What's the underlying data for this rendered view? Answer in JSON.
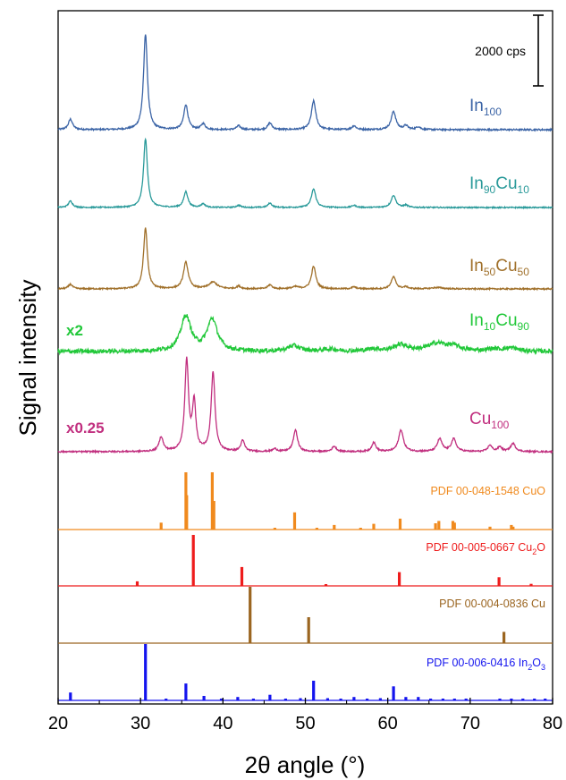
{
  "chart_data": {
    "type": "line",
    "xlabel": "2θ angle (°)",
    "ylabel": "Signal intensity",
    "xlim": [
      20,
      80
    ],
    "xticks": [
      "20",
      "30",
      "40",
      "50",
      "60",
      "70",
      "80"
    ],
    "scale_bar": {
      "label": "2000 cps"
    },
    "series": [
      {
        "key": "in100",
        "name_main": "In",
        "name_sub": "100",
        "name2_main": "",
        "name2_sub": "",
        "color": "#3b64a6",
        "multiplier": "",
        "baseline": 0,
        "noise": 0.8,
        "peaks": [
          [
            21.5,
            11,
            0.3
          ],
          [
            30.6,
            100,
            0.28
          ],
          [
            35.5,
            26,
            0.3
          ],
          [
            37.6,
            6,
            0.3
          ],
          [
            41.9,
            4,
            0.3
          ],
          [
            45.7,
            7,
            0.3
          ],
          [
            51.0,
            30,
            0.32
          ],
          [
            55.9,
            4,
            0.3
          ],
          [
            60.7,
            19,
            0.34
          ],
          [
            62.2,
            4,
            0.3
          ],
          [
            63.7,
            3,
            0.3
          ]
        ]
      },
      {
        "key": "in90cu10",
        "name_main": "In",
        "name_sub": "90",
        "name2_main": "Cu",
        "name2_sub": "10",
        "color": "#2a9a9a",
        "multiplier": "",
        "baseline": 0,
        "noise": 0.8,
        "peaks": [
          [
            21.5,
            9,
            0.3
          ],
          [
            30.6,
            96,
            0.28
          ],
          [
            35.5,
            22,
            0.3
          ],
          [
            37.6,
            5,
            0.3
          ],
          [
            41.9,
            3,
            0.3
          ],
          [
            45.7,
            6,
            0.3
          ],
          [
            51.0,
            26,
            0.32
          ],
          [
            55.9,
            3,
            0.3
          ],
          [
            60.7,
            17,
            0.34
          ],
          [
            62.2,
            3,
            0.3
          ]
        ]
      },
      {
        "key": "in50cu50",
        "name_main": "In",
        "name_sub": "50",
        "name2_main": "Cu",
        "name2_sub": "50",
        "color": "#a0702a",
        "multiplier": "",
        "baseline": 0,
        "noise": 1.0,
        "peaks": [
          [
            21.5,
            7,
            0.3
          ],
          [
            30.6,
            92,
            0.28
          ],
          [
            35.5,
            40,
            0.35
          ],
          [
            38.8,
            10,
            0.6
          ],
          [
            41.9,
            4,
            0.3
          ],
          [
            45.7,
            6,
            0.3
          ],
          [
            48.8,
            3,
            0.5
          ],
          [
            51.0,
            34,
            0.32
          ],
          [
            55.9,
            3,
            0.3
          ],
          [
            60.7,
            18,
            0.34
          ],
          [
            62.2,
            3,
            0.3
          ],
          [
            66.0,
            2,
            0.8
          ]
        ]
      },
      {
        "key": "in10cu90",
        "name_main": "In",
        "name_sub": "10",
        "name2_main": "Cu",
        "name2_sub": "90",
        "color": "#22c83a",
        "multiplier": "x2",
        "baseline": 0,
        "noise": 2.0,
        "peaks": [
          [
            35.5,
            32,
            0.75
          ],
          [
            38.7,
            29,
            0.75
          ],
          [
            48.6,
            5,
            0.9
          ],
          [
            53.0,
            2,
            1.0
          ],
          [
            58.3,
            2,
            1.0
          ],
          [
            61.6,
            6,
            1.0
          ],
          [
            66.0,
            7,
            1.4
          ],
          [
            68.0,
            4,
            1.0
          ],
          [
            72.8,
            2,
            1.0
          ],
          [
            75.0,
            3,
            1.0
          ]
        ]
      },
      {
        "key": "cu100",
        "name_main": "Cu",
        "name_sub": "100",
        "name2_main": "",
        "name2_sub": "",
        "color": "#c12f7f",
        "multiplier": "x0.25",
        "baseline": 0,
        "noise": 0.8,
        "peaks": [
          [
            32.5,
            16,
            0.3
          ],
          [
            35.6,
            100,
            0.27
          ],
          [
            36.5,
            53,
            0.25
          ],
          [
            38.8,
            88,
            0.28
          ],
          [
            42.4,
            12,
            0.28
          ],
          [
            46.3,
            3,
            0.3
          ],
          [
            48.8,
            24,
            0.3
          ],
          [
            53.5,
            6,
            0.3
          ],
          [
            58.3,
            10,
            0.3
          ],
          [
            61.6,
            24,
            0.35
          ],
          [
            66.3,
            14,
            0.35
          ],
          [
            68.0,
            14,
            0.35
          ],
          [
            72.4,
            7,
            0.3
          ],
          [
            73.6,
            5,
            0.3
          ],
          [
            75.2,
            9,
            0.35
          ]
        ]
      }
    ],
    "references": [
      {
        "key": "cuo",
        "label_main": "PDF 00-048-1548 CuO",
        "label_sub": "",
        "label_after": "",
        "color": "#f08a1e",
        "lines": [
          [
            32.5,
            12
          ],
          [
            35.5,
            100
          ],
          [
            35.6,
            60
          ],
          [
            38.7,
            100
          ],
          [
            38.9,
            50
          ],
          [
            46.3,
            3
          ],
          [
            48.7,
            30
          ],
          [
            51.4,
            2
          ],
          [
            53.5,
            8
          ],
          [
            56.7,
            2
          ],
          [
            58.3,
            10
          ],
          [
            61.5,
            19
          ],
          [
            65.8,
            11
          ],
          [
            66.2,
            15
          ],
          [
            67.9,
            15
          ],
          [
            68.1,
            12
          ],
          [
            72.4,
            5
          ],
          [
            75.0,
            8
          ],
          [
            75.2,
            5
          ]
        ]
      },
      {
        "key": "cu2o",
        "label_main": "PDF 00-005-0667 Cu",
        "label_sub": "2",
        "label_after": "O",
        "color": "#ee1c1c",
        "lines": [
          [
            29.6,
            9
          ],
          [
            36.4,
            100
          ],
          [
            42.3,
            37
          ],
          [
            52.5,
            1
          ],
          [
            61.4,
            27
          ],
          [
            73.5,
            17
          ],
          [
            77.4,
            4
          ]
        ]
      },
      {
        "key": "cu",
        "label_main": "PDF 00-004-0836 Cu",
        "label_sub": "",
        "label_after": "",
        "color": "#9b6520",
        "lines": [
          [
            43.3,
            100
          ],
          [
            50.4,
            46
          ],
          [
            74.1,
            20
          ]
        ]
      },
      {
        "key": "in2o3",
        "label_main": "PDF 00-006-0416 In",
        "label_sub": "2",
        "label_after": "O",
        "label_sub2": "3",
        "color": "#1414ee",
        "lines": [
          [
            21.5,
            14
          ],
          [
            30.6,
            100
          ],
          [
            33.1,
            3
          ],
          [
            35.5,
            30
          ],
          [
            37.7,
            8
          ],
          [
            39.8,
            3
          ],
          [
            41.8,
            6
          ],
          [
            43.7,
            2
          ],
          [
            45.7,
            10
          ],
          [
            47.6,
            2
          ],
          [
            49.4,
            4
          ],
          [
            51.0,
            35
          ],
          [
            52.7,
            4
          ],
          [
            54.3,
            3
          ],
          [
            55.9,
            6
          ],
          [
            57.5,
            2
          ],
          [
            59.1,
            4
          ],
          [
            60.7,
            25
          ],
          [
            62.2,
            6
          ],
          [
            63.7,
            6
          ],
          [
            65.2,
            3
          ],
          [
            66.7,
            3
          ],
          [
            68.1,
            3
          ],
          [
            69.5,
            2
          ],
          [
            73.6,
            2
          ],
          [
            75.0,
            3
          ],
          [
            76.4,
            3
          ],
          [
            77.8,
            2
          ],
          [
            79.1,
            3
          ]
        ]
      }
    ]
  }
}
